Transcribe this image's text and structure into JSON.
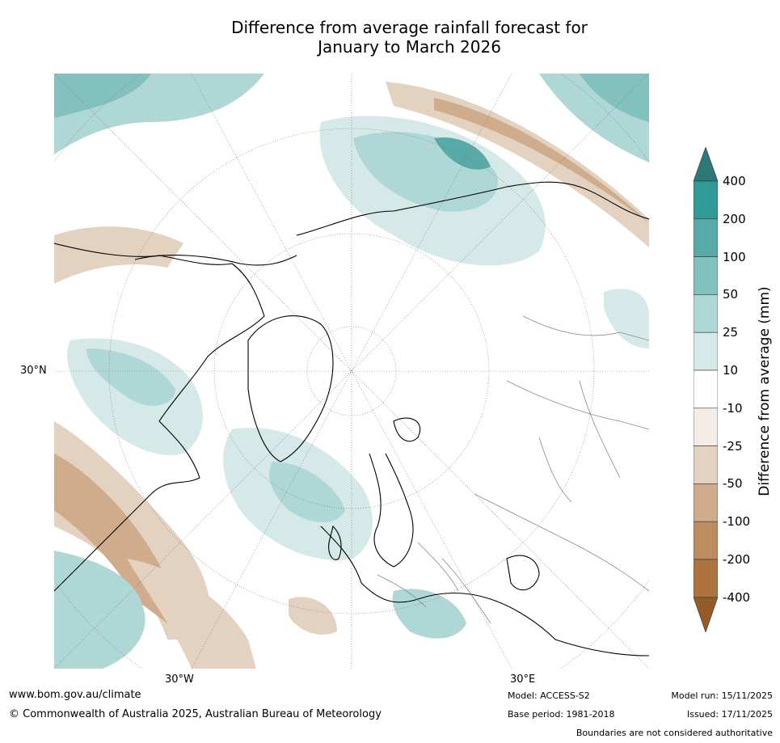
{
  "title_line1": "Difference from average rainfall forecast for",
  "title_line2": "January to March 2026",
  "graticule_labels": {
    "lat_30n": "30°N",
    "lon_30w": "30°W",
    "lon_30e": "30°E"
  },
  "colorbar": {
    "label": "Difference from average (mm)",
    "ticks": [
      "400",
      "200",
      "100",
      "50",
      "25",
      "10",
      "-10",
      "-25",
      "-50",
      "-100",
      "-200",
      "-400"
    ],
    "colors": {
      "above_max": "#2b7a78",
      "bins": [
        "#2f9a96",
        "#57aaa7",
        "#83c1bf",
        "#aed7d5",
        "#d5e9e8",
        "#ffffff",
        "#f4ece6",
        "#e4d2c1",
        "#cfac8c",
        "#bd8c5f",
        "#ad7440"
      ],
      "below_min": "#935b27"
    }
  },
  "footer": {
    "url": "www.bom.gov.au/climate",
    "copyright": "© Commonwealth of Australia 2025, Australian Bureau of Meteorology",
    "model": "Model: ACCESS-S2",
    "base_period": "Base period: 1981-2018",
    "model_run": "Model run: 15/11/2025",
    "issued": "Issued: 17/11/2025",
    "boundaries_note": "Boundaries are not considered authoritative"
  }
}
